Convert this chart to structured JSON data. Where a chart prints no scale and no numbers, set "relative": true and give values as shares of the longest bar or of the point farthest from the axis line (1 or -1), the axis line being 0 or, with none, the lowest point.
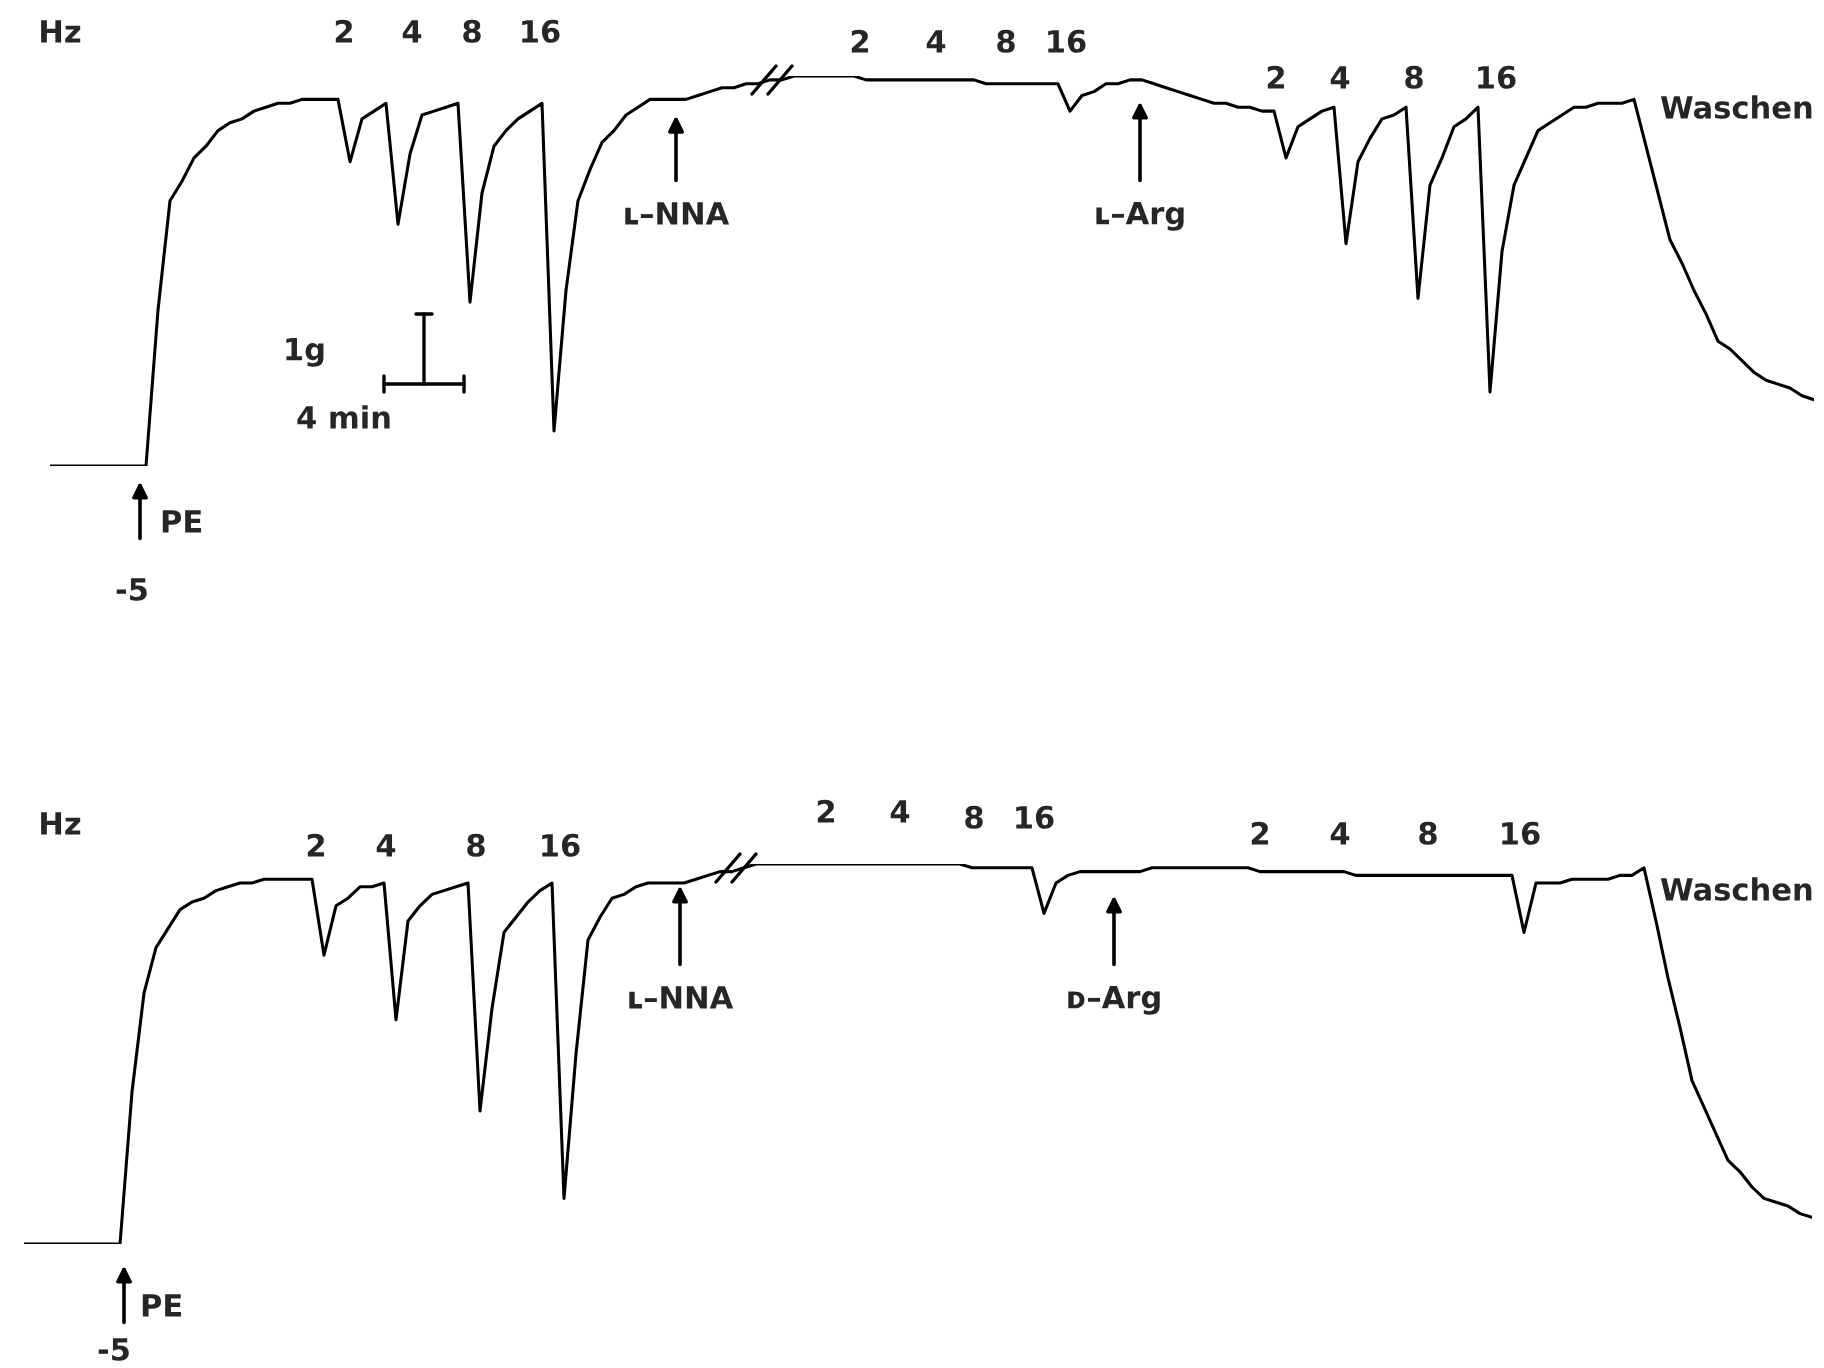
{
  "chart_data": [
    {
      "type": "line",
      "relative": true,
      "categories": [
        null,
        null,
        null,
        null,
        null,
        null,
        null,
        null,
        null,
        null,
        null,
        null,
        null,
        null,
        null,
        null,
        null,
        null,
        null,
        null,
        null,
        null,
        null,
        null,
        null,
        null,
        null,
        null,
        null,
        null,
        null,
        null,
        null,
        null,
        null,
        null,
        null,
        null,
        null,
        null,
        null,
        null,
        null,
        null,
        null,
        null,
        null,
        null,
        null,
        null,
        null,
        null,
        null,
        null,
        null,
        null,
        null,
        null,
        null,
        null,
        null,
        null,
        null,
        null,
        null,
        null,
        null,
        null,
        null,
        null,
        null,
        null,
        null,
        null,
        null,
        null,
        null,
        null,
        null,
        null,
        null,
        null,
        null,
        null,
        null,
        null,
        null,
        null,
        null,
        null,
        null,
        null,
        null,
        null,
        null,
        null,
        null,
        null,
        null,
        null,
        null,
        null,
        null,
        null,
        null,
        null,
        null,
        null,
        null,
        null,
        null,
        null,
        null,
        null,
        null,
        null,
        null,
        null,
        null,
        null,
        null,
        null,
        null,
        null,
        null,
        null,
        null,
        null,
        null,
        null,
        null,
        null,
        null,
        null,
        null,
        null,
        null,
        null,
        null,
        null,
        null,
        null,
        null,
        null,
        null,
        null,
        null,
        null
      ],
      "series": [
        {
          "color": "#000000",
          "values": [
            0,
            0,
            0,
            0,
            0,
            0,
            0,
            0,
            0,
            0.4,
            0.68,
            0.73,
            0.79,
            0.82,
            0.86,
            0.88,
            0.89,
            0.91,
            0.92,
            0.93,
            0.93,
            0.94,
            0.94,
            0.94,
            0.94,
            0.78,
            0.89,
            0.91,
            0.93,
            0.62,
            0.8,
            0.9,
            0.91,
            0.92,
            0.93,
            0.42,
            0.7,
            0.82,
            0.86,
            0.89,
            0.91,
            0.93,
            0.09,
            0.45,
            0.68,
            0.76,
            0.83,
            0.86,
            0.9,
            0.92,
            0.94,
            0.94,
            0.94,
            0.94,
            0.95,
            0.96,
            0.97,
            0.97,
            0.98,
            0.98,
            0.99,
            0.99,
            1.0,
            1.0,
            1.0,
            1.0,
            1.0,
            1.0,
            0.99,
            0.99,
            0.99,
            0.99,
            0.99,
            0.99,
            0.99,
            0.99,
            0.99,
            0.99,
            0.98,
            0.98,
            0.98,
            0.98,
            0.98,
            0.98,
            0.98,
            0.91,
            0.95,
            0.96,
            0.98,
            0.98,
            0.99,
            0.99,
            0.98,
            0.97,
            0.96,
            0.95,
            0.94,
            0.93,
            0.93,
            0.92,
            0.92,
            0.91,
            0.91,
            0.79,
            0.87,
            0.89,
            0.91,
            0.92,
            0.57,
            0.78,
            0.84,
            0.89,
            0.9,
            0.92,
            0.43,
            0.72,
            0.79,
            0.87,
            0.89,
            0.92,
            0.19,
            0.55,
            0.72,
            0.79,
            0.86,
            0.88,
            0.9,
            0.92,
            0.92,
            0.93,
            0.93,
            0.93,
            0.94,
            0.82,
            0.7,
            0.58,
            0.52,
            0.45,
            0.39,
            0.32,
            0.3,
            0.27,
            0.24,
            0.22,
            0.21,
            0.2,
            0.18,
            0.17
          ]
        }
      ],
      "annotations": [
        "Hz",
        "2",
        "4",
        "8",
        "16",
        "2",
        "4",
        "8",
        "16",
        "2",
        "4",
        "8",
        "16",
        "Waschen",
        "ʟ–NNA",
        "ʟ–Arg",
        "1g",
        "4 min",
        "PE",
        "-5"
      ]
    },
    {
      "type": "line",
      "relative": true,
      "categories": [
        null,
        null,
        null,
        null,
        null,
        null,
        null,
        null,
        null,
        null,
        null,
        null,
        null,
        null,
        null,
        null,
        null,
        null,
        null,
        null,
        null,
        null,
        null,
        null,
        null,
        null,
        null,
        null,
        null,
        null,
        null,
        null,
        null,
        null,
        null,
        null,
        null,
        null,
        null,
        null,
        null,
        null,
        null,
        null,
        null,
        null,
        null,
        null,
        null,
        null,
        null,
        null,
        null,
        null,
        null,
        null,
        null,
        null,
        null,
        null,
        null,
        null,
        null,
        null,
        null,
        null,
        null,
        null,
        null,
        null,
        null,
        null,
        null,
        null,
        null,
        null,
        null,
        null,
        null,
        null,
        null,
        null,
        null,
        null,
        null,
        null,
        null,
        null,
        null,
        null,
        null,
        null,
        null,
        null,
        null,
        null,
        null,
        null,
        null,
        null,
        null,
        null,
        null,
        null,
        null,
        null,
        null,
        null,
        null,
        null,
        null,
        null,
        null,
        null,
        null,
        null,
        null,
        null,
        null,
        null,
        null,
        null,
        null,
        null,
        null,
        null,
        null,
        null,
        null,
        null,
        null,
        null,
        null,
        null,
        null,
        null,
        null,
        null,
        null,
        null,
        null,
        null,
        null,
        null,
        null,
        null,
        null,
        null,
        null,
        null
      ],
      "series": [
        {
          "color": "#000000",
          "values": [
            0.0,
            0.0,
            0.0,
            0.0,
            0.0,
            0.0,
            0.0,
            0.0,
            0.0,
            0.4,
            0.66,
            0.78,
            0.83,
            0.88,
            0.9,
            0.91,
            0.93,
            0.94,
            0.95,
            0.95,
            0.96,
            0.96,
            0.96,
            0.96,
            0.96,
            0.76,
            0.89,
            0.91,
            0.94,
            0.94,
            0.95,
            0.59,
            0.85,
            0.89,
            0.92,
            0.93,
            0.94,
            0.95,
            0.35,
            0.62,
            0.82,
            0.86,
            0.9,
            0.93,
            0.95,
            0.12,
            0.5,
            0.8,
            0.86,
            0.91,
            0.92,
            0.94,
            0.95,
            0.95,
            0.95,
            0.95,
            0.96,
            0.97,
            0.98,
            0.98,
            0.99,
            1.0,
            1.0,
            1.0,
            1.0,
            1.0,
            1.0,
            1.0,
            1.0,
            1.0,
            1.0,
            1.0,
            1.0,
            1.0,
            1.0,
            1.0,
            1.0,
            1.0,
            1.0,
            0.99,
            0.99,
            0.99,
            0.99,
            0.99,
            0.99,
            0.87,
            0.95,
            0.97,
            0.98,
            0.98,
            0.98,
            0.98,
            0.98,
            0.98,
            0.99,
            0.99,
            0.99,
            0.99,
            0.99,
            0.99,
            0.99,
            0.99,
            0.99,
            0.98,
            0.98,
            0.98,
            0.98,
            0.98,
            0.98,
            0.98,
            0.98,
            0.97,
            0.97,
            0.97,
            0.97,
            0.97,
            0.97,
            0.97,
            0.97,
            0.97,
            0.97,
            0.97,
            0.97,
            0.97,
            0.97,
            0.82,
            0.95,
            0.95,
            0.95,
            0.96,
            0.96,
            0.96,
            0.96,
            0.97,
            0.97,
            0.99,
            0.85,
            0.7,
            0.57,
            0.43,
            0.36,
            0.29,
            0.22,
            0.19,
            0.15,
            0.12,
            0.11,
            0.1,
            0.08,
            0.07
          ]
        }
      ],
      "annotations": [
        "Hz",
        "2",
        "4",
        "8",
        "16",
        "2",
        "4",
        "8",
        "16",
        "2",
        "4",
        "8",
        "16",
        "Waschen",
        "ʟ–NNA",
        "ᴅ–Arg",
        "PE",
        "-5"
      ]
    }
  ]
}
